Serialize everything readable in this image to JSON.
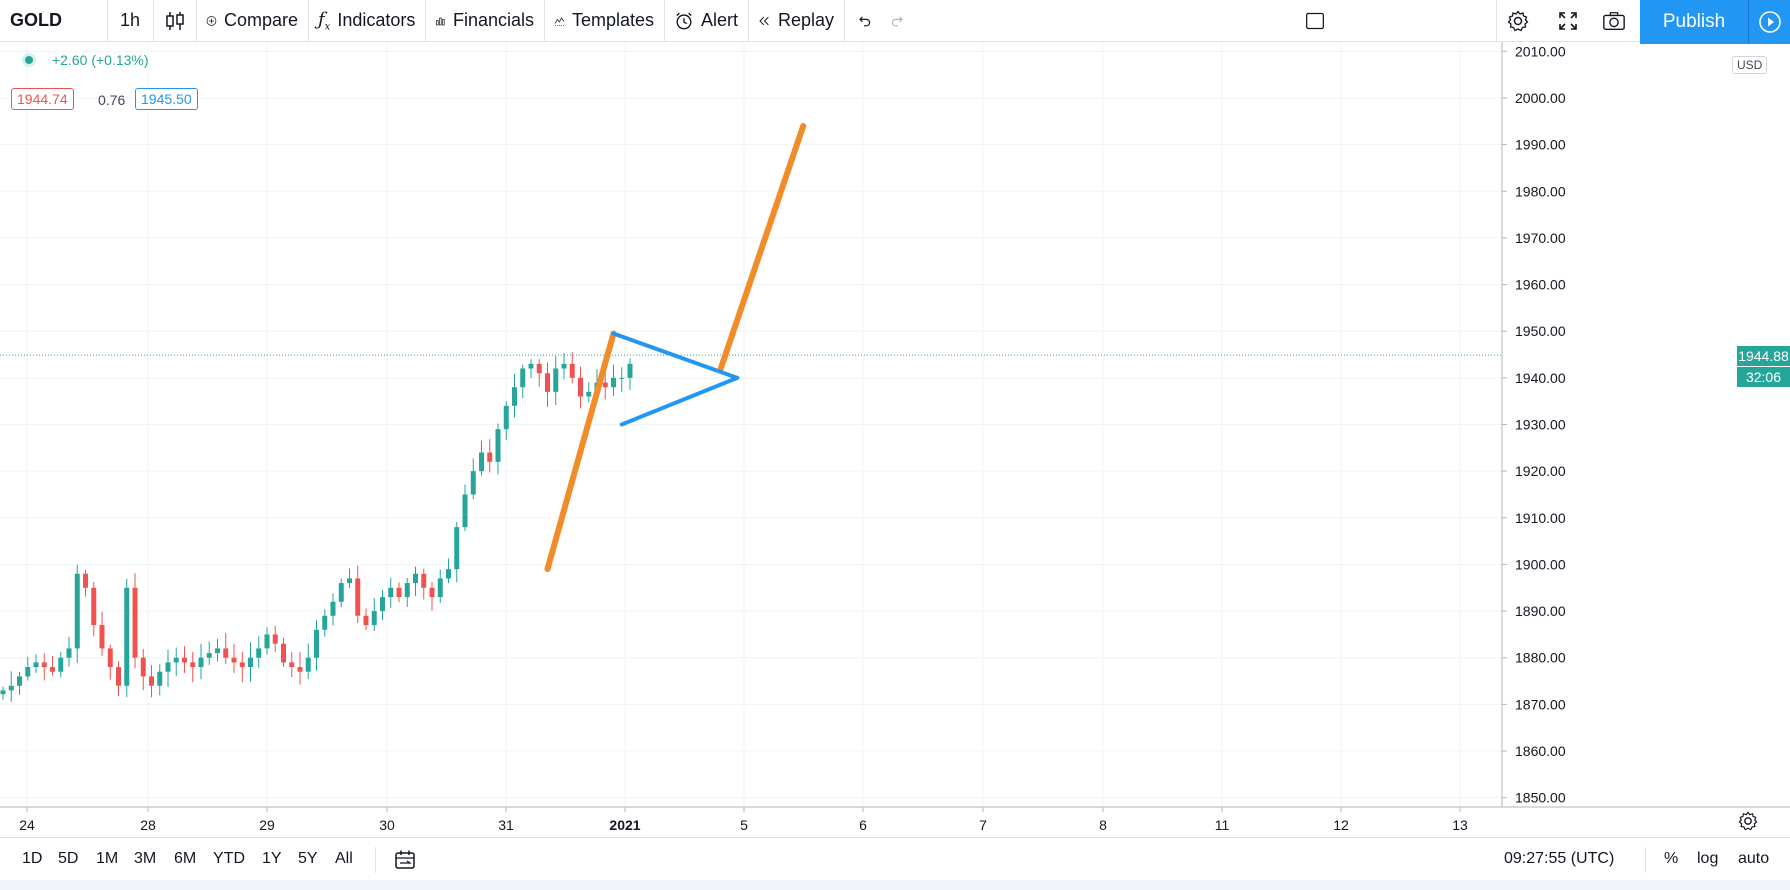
{
  "toolbar": {
    "symbol": "GOLD",
    "interval": "1h",
    "compare": "Compare",
    "indicators": "Indicators",
    "financials": "Financials",
    "templates": "Templates",
    "alert": "Alert",
    "replay": "Replay",
    "publish": "Publish"
  },
  "legend": {
    "change": "+2.60 (+0.13%)",
    "bid": "1944.74",
    "spread": "0.76",
    "ask": "1945.50"
  },
  "price_axis": {
    "currency": "USD",
    "levels": [
      "2010.00",
      "2000.00",
      "1990.00",
      "1980.00",
      "1970.00",
      "1960.00",
      "1950.00",
      "1940.00",
      "1930.00",
      "1920.00",
      "1910.00",
      "1900.00",
      "1890.00",
      "1880.00",
      "1870.00",
      "1860.00",
      "1850.00"
    ],
    "last_price": "1944.88",
    "countdown": "32:06"
  },
  "time_axis": {
    "labels": [
      {
        "text": "24",
        "bold": false
      },
      {
        "text": "28",
        "bold": false
      },
      {
        "text": "29",
        "bold": false
      },
      {
        "text": "30",
        "bold": false
      },
      {
        "text": "31",
        "bold": false
      },
      {
        "text": "2021",
        "bold": true
      },
      {
        "text": "5",
        "bold": false
      },
      {
        "text": "6",
        "bold": false
      },
      {
        "text": "7",
        "bold": false
      },
      {
        "text": "8",
        "bold": false
      },
      {
        "text": "11",
        "bold": false
      },
      {
        "text": "12",
        "bold": false
      },
      {
        "text": "13",
        "bold": false
      }
    ]
  },
  "bottom": {
    "ranges": [
      "1D",
      "5D",
      "1M",
      "3M",
      "6M",
      "YTD",
      "1Y",
      "5Y",
      "All"
    ],
    "clock": "09:27:55 (UTC)",
    "percent": "%",
    "log": "log",
    "auto": "auto"
  },
  "colors": {
    "up": "#26a69a",
    "down": "#ef5350",
    "flag_pole": "#f28c28",
    "pennant": "#2196f3",
    "accent": "#2196f3"
  },
  "chart_data": {
    "type": "candlestick",
    "symbol": "GOLD",
    "interval": "1h",
    "ylim": [
      1848,
      2012
    ],
    "x_labels": [
      "24",
      "28",
      "29",
      "30",
      "31",
      "2021",
      "5",
      "6",
      "7",
      "8",
      "11",
      "12",
      "13"
    ],
    "last_price": 1944.88,
    "close_trend": [
      1873,
      1874,
      1876,
      1878,
      1879,
      1878,
      1877,
      1880,
      1882,
      1898,
      1895,
      1887,
      1882,
      1878,
      1874,
      1895,
      1880,
      1876,
      1874,
      1877,
      1879,
      1880,
      1879,
      1878,
      1880,
      1881,
      1882,
      1880,
      1879,
      1878,
      1880,
      1882,
      1885,
      1883,
      1879,
      1878,
      1877,
      1880,
      1886,
      1889,
      1892,
      1896,
      1897,
      1889,
      1887,
      1890,
      1893,
      1895,
      1893,
      1896,
      1898,
      1895,
      1893,
      1897,
      1899,
      1908,
      1915,
      1920,
      1924,
      1922,
      1929,
      1934,
      1938,
      1942,
      1943,
      1941,
      1937,
      1942,
      1943,
      1940,
      1936,
      1937,
      1939,
      1938,
      1940,
      1940,
      1943
    ],
    "annotations": {
      "flag_pole": [
        {
          "x_bar": 66,
          "price": 1899
        },
        {
          "x_bar": 74,
          "price": 1949.5
        }
      ],
      "target_line": [
        {
          "x_bar": 87,
          "price": 1942
        },
        {
          "x_bar": 97,
          "price": 1994
        }
      ],
      "pennant_upper": [
        {
          "x_bar": 74,
          "price": 1949.5
        },
        {
          "x_bar": 89,
          "price": 1940
        }
      ],
      "pennant_lower": [
        {
          "x_bar": 75,
          "price": 1930
        },
        {
          "x_bar": 89,
          "price": 1940
        }
      ]
    }
  }
}
